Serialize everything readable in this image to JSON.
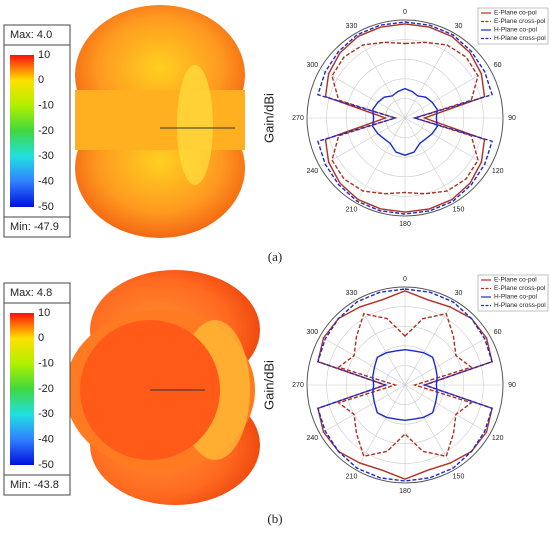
{
  "figure": {
    "panels": [
      {
        "label": "(a)",
        "max": "Max: 4.0",
        "min": "Min: -47.9"
      },
      {
        "label": "(b)",
        "max": "Max: 4.8",
        "min": "Min: -43.8"
      }
    ],
    "colorbar": {
      "ticks": [
        10,
        0,
        -10,
        -20,
        -30,
        -40,
        -50
      ],
      "colors": [
        "#ff1010",
        "#ffe000",
        "#b0f000",
        "#40d840",
        "#20e0e0",
        "#3080ff",
        "#0010e0"
      ]
    }
  },
  "chart_data": [
    {
      "type": "polar",
      "ylabel": "Gain/dBi",
      "x": [
        0,
        15,
        30,
        45,
        60,
        75,
        90,
        105,
        120,
        135,
        150,
        165,
        180,
        195,
        210,
        225,
        240,
        255,
        270,
        285,
        300,
        315,
        330,
        345
      ],
      "xticks": [
        0,
        30,
        60,
        90,
        120,
        150,
        180,
        210,
        240,
        270,
        300,
        330
      ],
      "ylim": [
        -40,
        10
      ],
      "legend": "upper right",
      "series": [
        {
          "name": "E-Plane co-pol",
          "color": "#b03020",
          "dashed": false,
          "values": [
            8,
            8,
            8,
            7,
            5,
            2,
            -30,
            2,
            5,
            7,
            8,
            8,
            8,
            8,
            8,
            7,
            5,
            2,
            -30,
            2,
            5,
            7,
            8,
            8
          ]
        },
        {
          "name": "E-Plane cross-pol",
          "color": "#b03020",
          "dashed": true,
          "values": [
            -2,
            0,
            3,
            4,
            3,
            -5,
            -35,
            -5,
            3,
            4,
            3,
            0,
            -2,
            0,
            3,
            4,
            3,
            -5,
            -35,
            -5,
            3,
            4,
            3,
            0
          ]
        },
        {
          "name": "H-Plane co-pol",
          "color": "#1a2ad0",
          "dashed": false,
          "values": [
            -25,
            -26,
            -27,
            -25,
            -24,
            -23,
            -24,
            -23,
            -24,
            -25,
            -25,
            -22,
            -21,
            -22,
            -25,
            -25,
            -24,
            -23,
            -24,
            -23,
            -24,
            -25,
            -27,
            -26
          ]
        },
        {
          "name": "H-Plane cross-pol",
          "color": "#1a2ad0",
          "dashed": true,
          "values": [
            9,
            9,
            9,
            8,
            7,
            6,
            -35,
            6,
            7,
            8,
            9,
            9,
            9,
            9,
            9,
            8,
            7,
            6,
            -35,
            6,
            7,
            8,
            9,
            9
          ]
        }
      ]
    },
    {
      "type": "polar",
      "ylabel": "Gain/dBi",
      "x": [
        0,
        15,
        30,
        45,
        60,
        75,
        90,
        105,
        120,
        135,
        150,
        165,
        180,
        195,
        210,
        225,
        240,
        255,
        270,
        285,
        300,
        315,
        330,
        345
      ],
      "xticks": [
        0,
        30,
        60,
        90,
        120,
        150,
        180,
        210,
        240,
        270,
        300,
        330
      ],
      "ylim": [
        -40,
        10
      ],
      "legend": "upper right",
      "series": [
        {
          "name": "E-Plane co-pol",
          "color": "#b03020",
          "dashed": false,
          "values": [
            8,
            5,
            6,
            8,
            8,
            6,
            -30,
            6,
            8,
            8,
            6,
            5,
            8,
            5,
            6,
            8,
            8,
            6,
            -30,
            6,
            8,
            8,
            6,
            5
          ]
        },
        {
          "name": "E-Plane cross-pol",
          "color": "#b03020",
          "dashed": true,
          "values": [
            -15,
            -5,
            2,
            -5,
            -10,
            -5,
            -35,
            -5,
            -10,
            -5,
            2,
            -5,
            -15,
            -5,
            2,
            -5,
            -10,
            -5,
            -35,
            -5,
            -10,
            -5,
            2,
            -5
          ]
        },
        {
          "name": "H-Plane co-pol",
          "color": "#1a2ad0",
          "dashed": false,
          "values": [
            -22,
            -22,
            -21,
            -20,
            -22,
            -23,
            -24,
            -23,
            -22,
            -20,
            -21,
            -22,
            -22,
            -22,
            -21,
            -20,
            -22,
            -23,
            -24,
            -23,
            -22,
            -20,
            -21,
            -22
          ]
        },
        {
          "name": "H-Plane cross-pol",
          "color": "#1a2ad0",
          "dashed": true,
          "values": [
            9,
            9,
            9,
            8,
            7,
            6,
            -30,
            6,
            7,
            8,
            9,
            9,
            9,
            9,
            9,
            8,
            7,
            6,
            -30,
            6,
            7,
            8,
            9,
            9
          ]
        }
      ]
    }
  ]
}
